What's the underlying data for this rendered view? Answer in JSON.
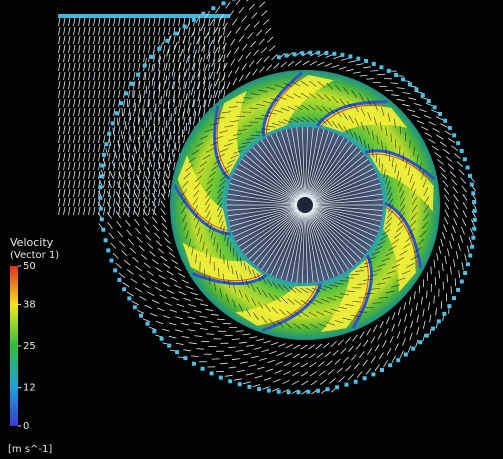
{
  "legend": {
    "title": "Velocity",
    "subtitle": "(Vector 1)",
    "ticks": [
      50,
      38,
      25,
      12,
      0
    ],
    "unit": "[m s^-1]"
  }
}
